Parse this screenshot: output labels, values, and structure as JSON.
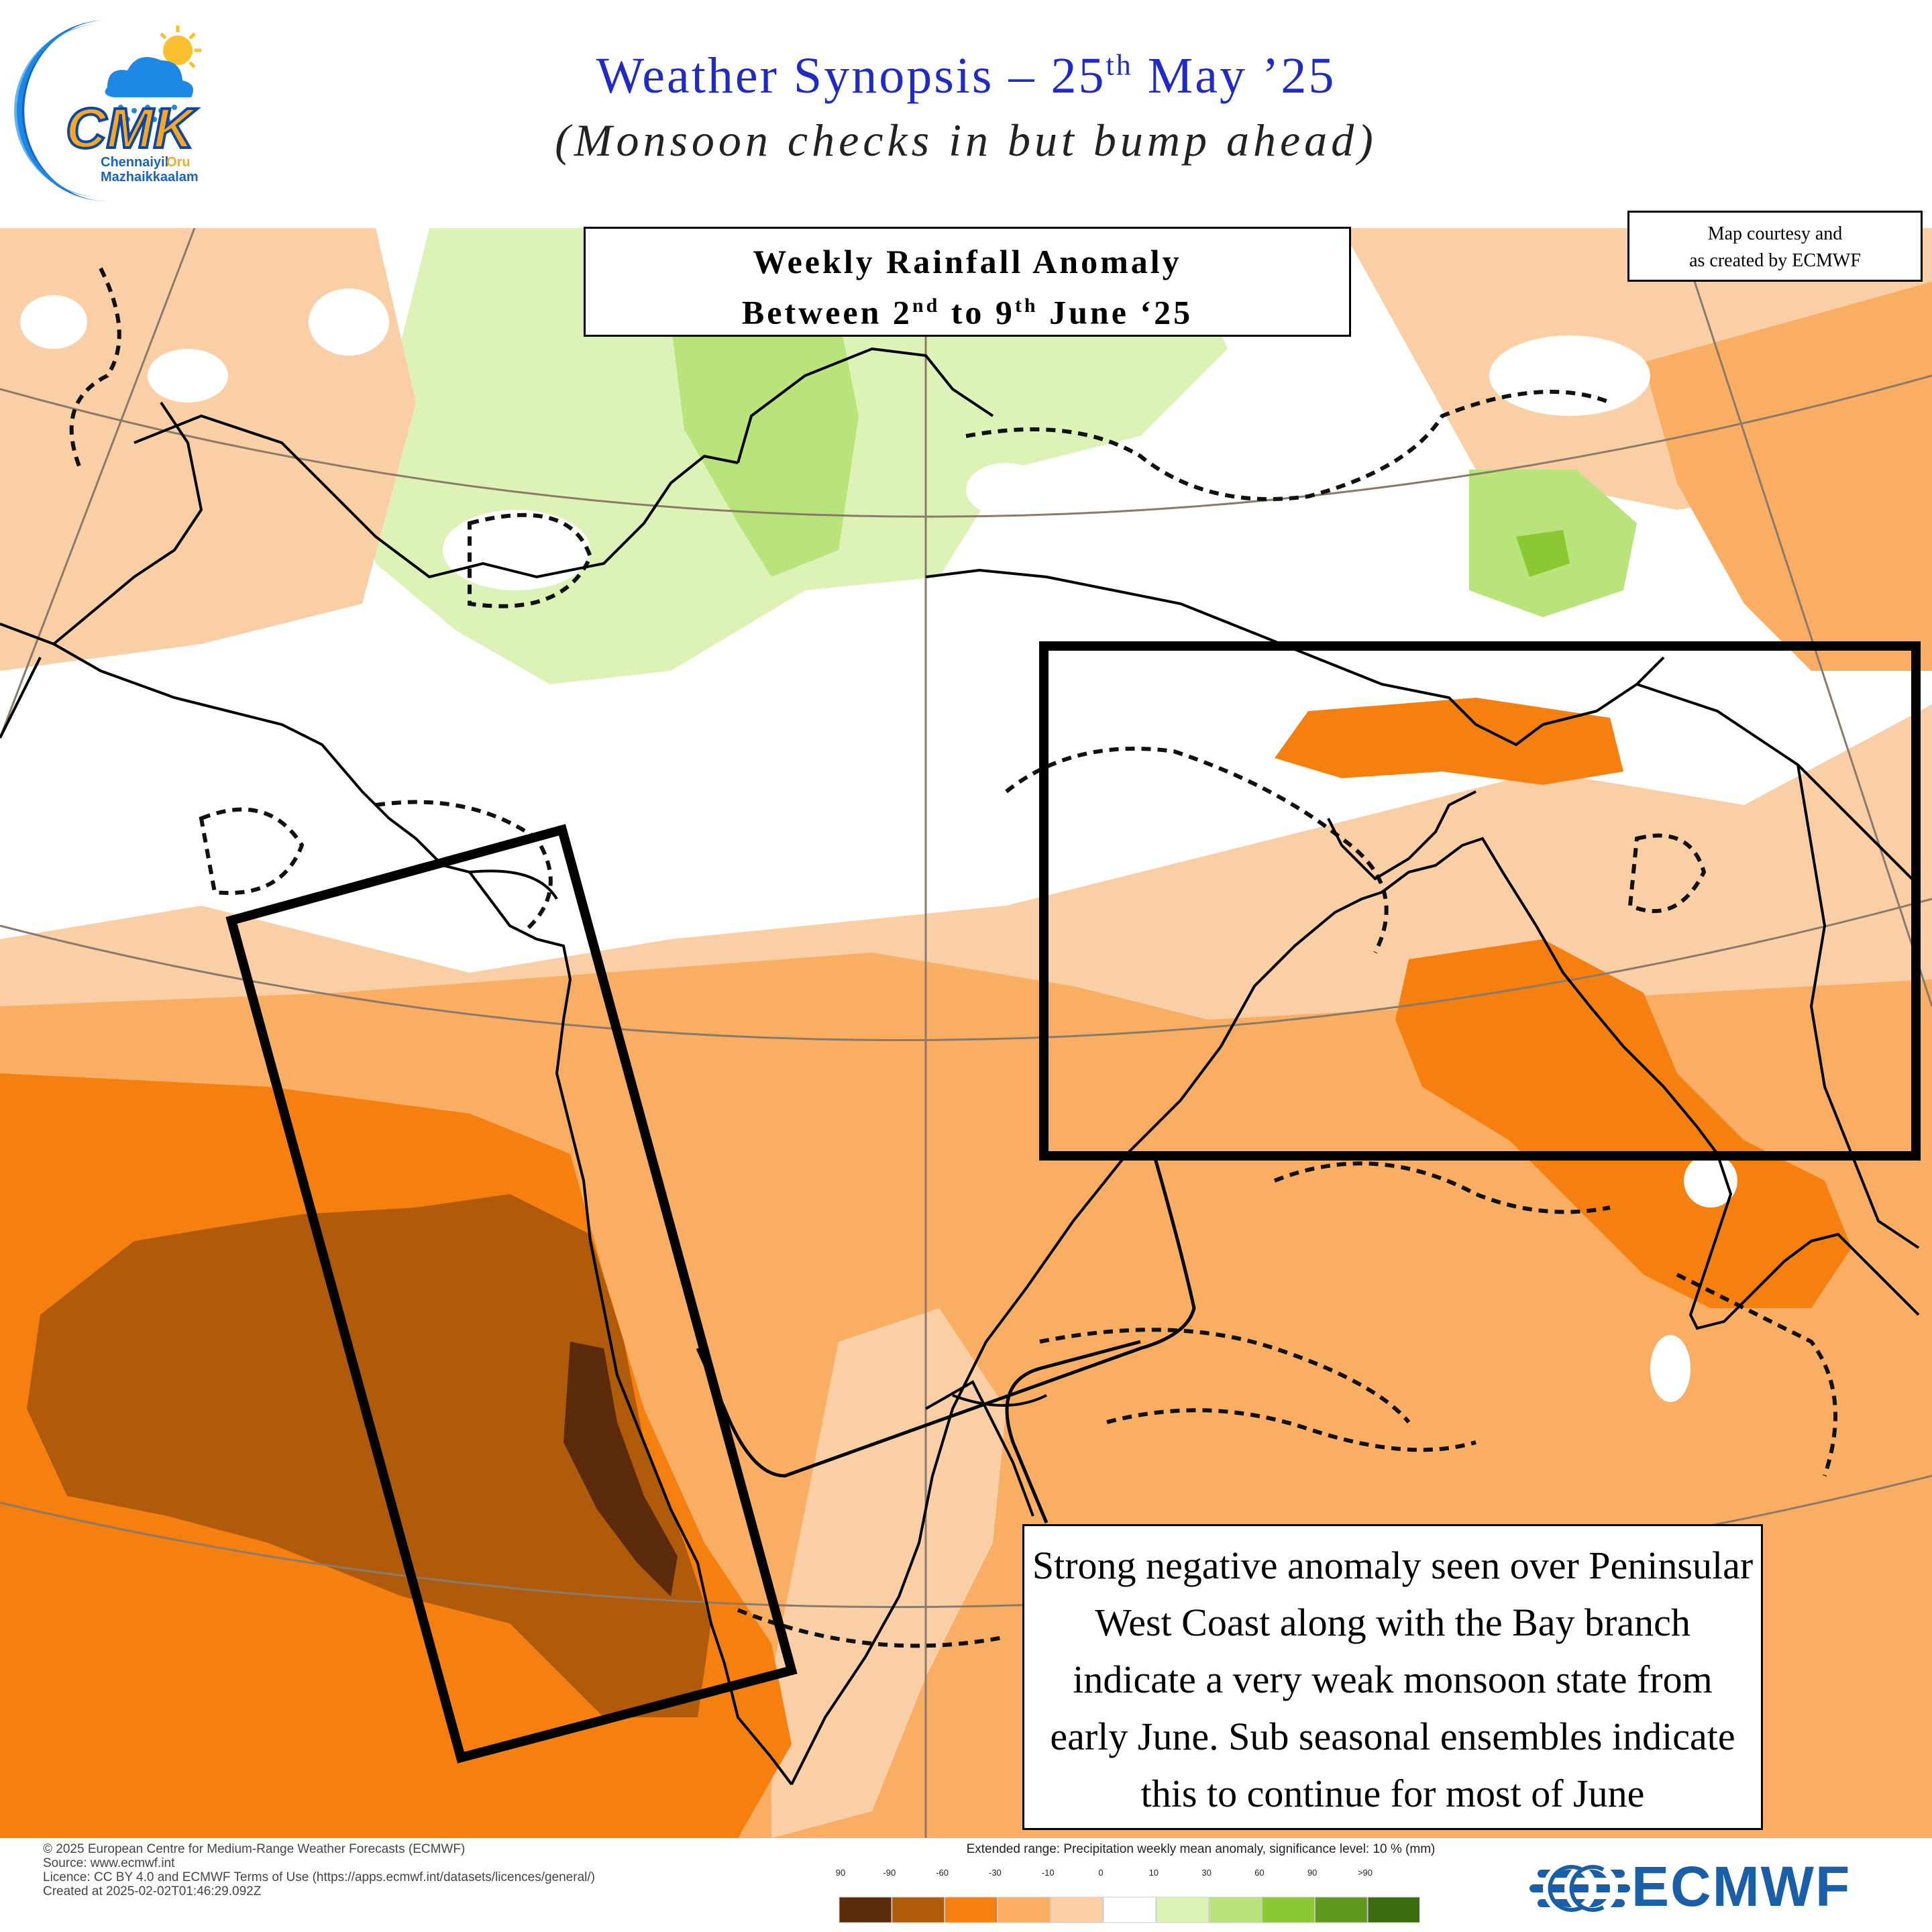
{
  "header": {
    "title_main": "Weather Synopsis – 25",
    "title_sup": "th",
    "title_end": " May ’25",
    "subtitle": "(Monsoon checks in but bump ahead)"
  },
  "logo": {
    "letters": "CMK",
    "line1a": "Chennaiyil",
    "line1b": "Oru",
    "line2": "Mazhaikkaalam"
  },
  "inset_title": {
    "line1": "Weekly Rainfall Anomaly",
    "line2_a": "Between 2",
    "line2_sup1": "nd",
    "line2_b": " to 9",
    "line2_sup2": "th",
    "line2_c": " June ‘25"
  },
  "courtesy": {
    "line1": "Map courtesy and",
    "line2": "as created by ECMWF"
  },
  "annotation": {
    "lines": [
      "Strong negative anomaly seen over Peninsular",
      "West Coast along with the Bay branch",
      "indicate a very weak monsoon state from",
      "early June. Sub seasonal ensembles indicate",
      "this to continue for most of June"
    ]
  },
  "footer": {
    "copyright": "© 2025 European Centre for Medium-Range Weather Forecasts (ECMWF)",
    "source": "Source: www.ecmwf.int",
    "licence": "Licence: CC BY 4.0 and ECMWF Terms of Use (https://apps.ecmwf.int/datasets/licences/general/)",
    "created": "Created at 2025-02-02T01:46:29.092Z"
  },
  "legend": {
    "title": "Extended range: Precipitation weekly mean anomaly, significance level: 10 % (mm)",
    "labels": [
      "<-90",
      "-90",
      "-60",
      "-30",
      "-10",
      "0",
      "10",
      "30",
      "60",
      "90",
      ">90"
    ],
    "colors": [
      "#5a2a0a",
      "#b05a0b",
      "#f57f0f",
      "#f9ae63",
      "#fbcfa6",
      "#ffffff",
      "#dcf2b6",
      "#b9e47c",
      "#8bc832",
      "#5f9a1e",
      "#3c6b10"
    ]
  },
  "brand": {
    "name": "ECMWF"
  }
}
